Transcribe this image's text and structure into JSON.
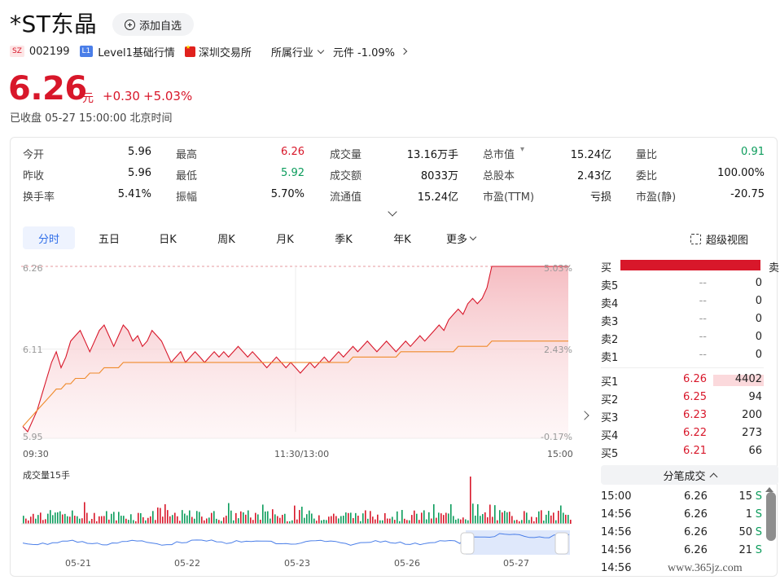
{
  "header": {
    "stock_name": "*ST东晶",
    "add_favorite": "添加自选",
    "market_tag": "SZ",
    "code": "002199",
    "level_tag": "L1",
    "level_text": "Level1基础行情",
    "exchange": "深圳交易所",
    "industry": "所属行业",
    "sector": "元件 -1.09%"
  },
  "quote": {
    "price": "6.26",
    "unit": "元",
    "change": "+0.30",
    "change_pct": "+5.03%",
    "status": "已收盘 05-27 15:00:00 北京时间"
  },
  "stats": [
    {
      "label": "今开",
      "value": "5.96",
      "color": "#111111"
    },
    {
      "label": "最高",
      "value": "6.26",
      "color": "#d8172a"
    },
    {
      "label": "成交量",
      "value": "13.16万手",
      "color": "#111111"
    },
    {
      "label": "总市值",
      "value": "15.24亿",
      "color": "#111111"
    },
    {
      "label": "量比",
      "value": "0.91",
      "color": "#0c9c5c"
    },
    {
      "label": "昨收",
      "value": "5.96",
      "color": "#111111"
    },
    {
      "label": "最低",
      "value": "5.92",
      "color": "#0c9c5c"
    },
    {
      "label": "成交额",
      "value": "8033万",
      "color": "#111111"
    },
    {
      "label": "总股本",
      "value": "2.43亿",
      "color": "#111111"
    },
    {
      "label": "委比",
      "value": "100.00%",
      "color": "#111111"
    },
    {
      "label": "换手率",
      "value": "5.41%",
      "color": "#111111"
    },
    {
      "label": "振幅",
      "value": "5.70%",
      "color": "#111111"
    },
    {
      "label": "流通值",
      "value": "15.24亿",
      "color": "#111111"
    },
    {
      "label": "市盈(TTM)",
      "value": "亏损",
      "color": "#111111"
    },
    {
      "label": "市盈(静)",
      "value": "-20.75",
      "color": "#111111"
    }
  ],
  "tabs": [
    "分时",
    "五日",
    "日K",
    "周K",
    "月K",
    "季K",
    "年K",
    "更多"
  ],
  "super_view": "超级视图",
  "chart_data": {
    "type": "line",
    "y_labels": [
      "6.26",
      "6.11",
      "5.95"
    ],
    "pct_labels": [
      "5.03%",
      "2.43%",
      "-0.17%"
    ],
    "x_labels": [
      "09:30",
      "11:30/13:00",
      "15:00"
    ],
    "ylim": [
      5.95,
      6.26
    ],
    "price": [
      5.96,
      5.95,
      5.97,
      5.99,
      6.02,
      6.05,
      6.08,
      6.1,
      6.07,
      6.09,
      6.12,
      6.13,
      6.14,
      6.12,
      6.1,
      6.12,
      6.14,
      6.15,
      6.13,
      6.11,
      6.13,
      6.15,
      6.14,
      6.12,
      6.13,
      6.11,
      6.12,
      6.14,
      6.13,
      6.12,
      6.1,
      6.08,
      6.09,
      6.1,
      6.08,
      6.09,
      6.1,
      6.09,
      6.08,
      6.09,
      6.1,
      6.09,
      6.1,
      6.09,
      6.1,
      6.11,
      6.1,
      6.09,
      6.1,
      6.09,
      6.08,
      6.07,
      6.08,
      6.09,
      6.08,
      6.07,
      6.08,
      6.07,
      6.06,
      6.07,
      6.08,
      6.07,
      6.08,
      6.09,
      6.08,
      6.09,
      6.1,
      6.09,
      6.1,
      6.11,
      6.1,
      6.11,
      6.12,
      6.11,
      6.1,
      6.11,
      6.12,
      6.11,
      6.1,
      6.11,
      6.12,
      6.11,
      6.12,
      6.13,
      6.12,
      6.13,
      6.14,
      6.15,
      6.14,
      6.16,
      6.17,
      6.18,
      6.17,
      6.19,
      6.2,
      6.19,
      6.2,
      6.22,
      6.26,
      6.26,
      6.26,
      6.26,
      6.26,
      6.26,
      6.26,
      6.26,
      6.26,
      6.26,
      6.26,
      6.26,
      6.26,
      6.26,
      6.26,
      6.26,
      6.26
    ],
    "avg_price": [
      5.96,
      5.97,
      5.98,
      5.99,
      6.0,
      6.01,
      6.02,
      6.03,
      6.03,
      6.04,
      6.04,
      6.05,
      6.05,
      6.05,
      6.06,
      6.06,
      6.06,
      6.07,
      6.07,
      6.07,
      6.07,
      6.08,
      6.08,
      6.08,
      6.08,
      6.08,
      6.08,
      6.08,
      6.08,
      6.08,
      6.08,
      6.08,
      6.08,
      6.08,
      6.08,
      6.08,
      6.08,
      6.08,
      6.08,
      6.08,
      6.08,
      6.08,
      6.08,
      6.08,
      6.08,
      6.08,
      6.08,
      6.08,
      6.08,
      6.08,
      6.08,
      6.08,
      6.08,
      6.08,
      6.08,
      6.08,
      6.08,
      6.08,
      6.08,
      6.08,
      6.08,
      6.08,
      6.08,
      6.08,
      6.08,
      6.08,
      6.08,
      6.08,
      6.08,
      6.09,
      6.09,
      6.09,
      6.09,
      6.09,
      6.09,
      6.09,
      6.09,
      6.09,
      6.09,
      6.1,
      6.1,
      6.1,
      6.1,
      6.1,
      6.1,
      6.1,
      6.1,
      6.1,
      6.1,
      6.1,
      6.1,
      6.11,
      6.11,
      6.11,
      6.11,
      6.11,
      6.11,
      6.11,
      6.12,
      6.12,
      6.12,
      6.12,
      6.12,
      6.12,
      6.12,
      6.12,
      6.12,
      6.12,
      6.12,
      6.12,
      6.12,
      6.12,
      6.12,
      6.12,
      6.12
    ]
  },
  "volume": {
    "label": "成交量15手",
    "dates": [
      "05-21",
      "05-22",
      "05-23",
      "05-26",
      "05-27"
    ]
  },
  "order_book": {
    "bar_left": "买",
    "bar_right": "卖",
    "asks": [
      {
        "label": "卖5",
        "price": "--",
        "vol": "0"
      },
      {
        "label": "卖4",
        "price": "--",
        "vol": "0"
      },
      {
        "label": "卖3",
        "price": "--",
        "vol": "0"
      },
      {
        "label": "卖2",
        "price": "--",
        "vol": "0"
      },
      {
        "label": "卖1",
        "price": "--",
        "vol": "0"
      }
    ],
    "bids": [
      {
        "label": "买1",
        "price": "6.26",
        "vol": "4402"
      },
      {
        "label": "买2",
        "price": "6.25",
        "vol": "94"
      },
      {
        "label": "买3",
        "price": "6.23",
        "vol": "200"
      },
      {
        "label": "买4",
        "price": "6.22",
        "vol": "273"
      },
      {
        "label": "买5",
        "price": "6.21",
        "vol": "66"
      }
    ]
  },
  "trades": {
    "title": "分笔成交",
    "rows": [
      {
        "time": "15:00",
        "price": "6.26",
        "vol": "15",
        "side": "S"
      },
      {
        "time": "14:56",
        "price": "6.26",
        "vol": "1",
        "side": "S"
      },
      {
        "time": "14:56",
        "price": "6.26",
        "vol": "50",
        "side": "S"
      },
      {
        "time": "14:56",
        "price": "6.26",
        "vol": "21",
        "side": "S"
      },
      {
        "time": "14:56",
        "price": "",
        "vol": "",
        "side": ""
      }
    ]
  },
  "watermark": "www.365jz.com",
  "colors": {
    "up": "#d8172a",
    "down": "#0c9c5c",
    "avg": "#ef8a2b",
    "accent": "#2f6ee8"
  }
}
